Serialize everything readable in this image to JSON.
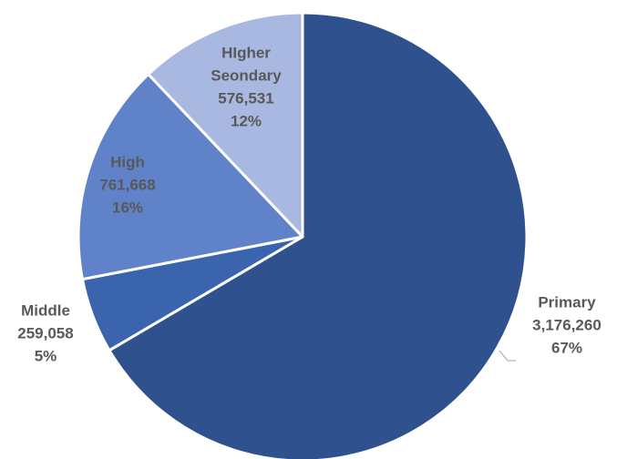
{
  "chart_data": {
    "type": "pie",
    "title": "",
    "start_angle_deg": 0,
    "direction": "clockwise",
    "slices": [
      {
        "name": "Primary",
        "value": 3176260,
        "value_label": "3,176,260",
        "percent_label": "67%",
        "color": "#2F528F"
      },
      {
        "name": "Middle",
        "value": 259058,
        "value_label": "259,058",
        "percent_label": "5%",
        "color": "#3A65AE"
      },
      {
        "name": "High",
        "value": 761668,
        "value_label": "761,668",
        "percent_label": "16%",
        "color": "#5F82C9"
      },
      {
        "name": "HIgher Seondary",
        "name_lines": [
          "HIgher",
          "Seondary"
        ],
        "value": 576531,
        "value_label": "576,531",
        "percent_label": "12%",
        "color": "#A9B8E0"
      }
    ],
    "slice_border_color": "#FFFFFF",
    "label_color": "#595959",
    "leader_line_color": "#A6A6A6"
  }
}
